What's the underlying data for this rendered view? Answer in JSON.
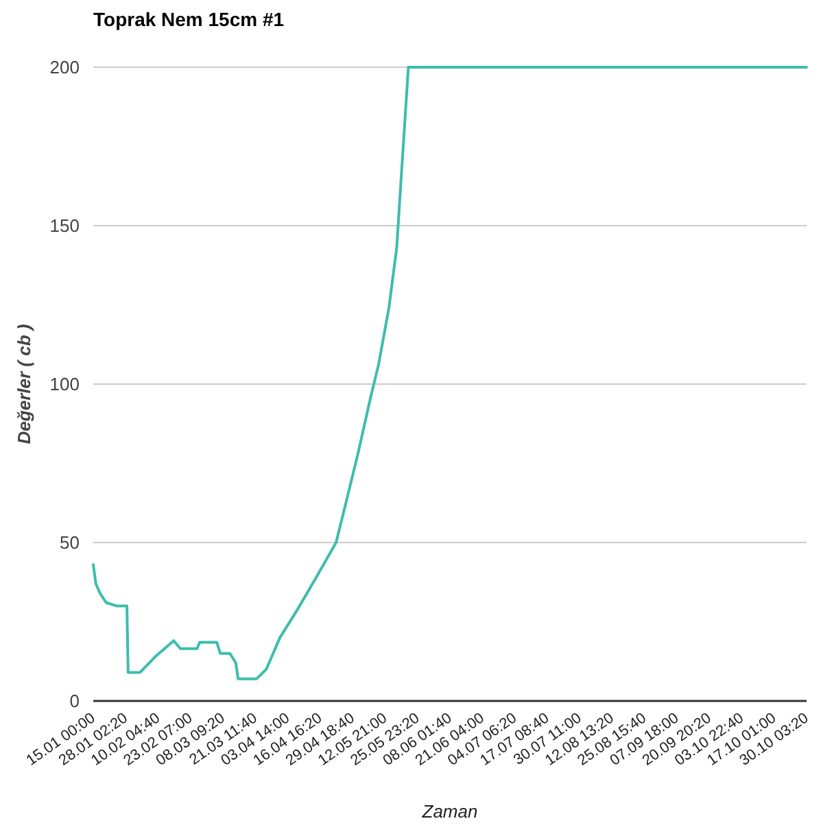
{
  "chart_data": {
    "type": "line",
    "title": "Toprak Nem 15cm #1",
    "xlabel": "Zaman",
    "ylabel": "Değerler ( cb )",
    "x": [
      "--01-15T00:00",
      "--01-16T01:00",
      "--01-17T17:00",
      "--01-20T06:00",
      "--01-24T10:00",
      "--01-28T14:00",
      "--01-29T02:00",
      "--02-02T22:00",
      "--02-09T02:00",
      "--02-16T12:00",
      "--02-19T05:00",
      "--02-25T22:00",
      "--02-27T00:00",
      "--03-05T22:00",
      "--03-07T07:00",
      "--03-11T05:00",
      "--03-13T14:00",
      "--03-14T12:00",
      "--03-22T00:00",
      "--03-25T22:00",
      "--03-31T10:00",
      "--04-07T07:00",
      "--04-15T02:00",
      "--04-23T02:00",
      "--04-26T14:00",
      "--05-01T22:00",
      "--05-07T02:00",
      "--05-10T05:00",
      "--05-14T10:00",
      "--05-17T14:00",
      "--05-19T17:00",
      "--05-21T05:00",
      "--05-22T07:00",
      "--10-30T03:20"
    ],
    "series": [
      {
        "color": "#3dbdac",
        "values": [
          43,
          37,
          34,
          31,
          30,
          30,
          9,
          9,
          14,
          19,
          16.5,
          16.5,
          18.5,
          18.5,
          15,
          15,
          12,
          7,
          7,
          10,
          20,
          28.6,
          39,
          50,
          61,
          78,
          96,
          106,
          124,
          143,
          169,
          187,
          200,
          200
        ]
      }
    ],
    "xlim": [
      "--01-15T00:00",
      "--10-30T03:20"
    ],
    "xticks": [
      {
        "value": "--01-15T00:00",
        "label": "15.01 00:00"
      },
      {
        "value": "--01-28T02:20",
        "label": "28.01 02:20"
      },
      {
        "value": "--02-10T04:40",
        "label": "10.02 04:40"
      },
      {
        "value": "--02-23T07:00",
        "label": "23.02 07:00"
      },
      {
        "value": "--03-08T09:20",
        "label": "08.03 09:20"
      },
      {
        "value": "--03-21T11:40",
        "label": "21.03 11:40"
      },
      {
        "value": "--04-03T14:00",
        "label": "03.04 14:00"
      },
      {
        "value": "--04-16T16:20",
        "label": "16.04 16:20"
      },
      {
        "value": "--04-29T18:40",
        "label": "29.04 18:40"
      },
      {
        "value": "--05-12T21:00",
        "label": "12.05 21:00"
      },
      {
        "value": "--05-25T23:20",
        "label": "25.05 23:20"
      },
      {
        "value": "--06-08T01:40",
        "label": "08.06 01:40"
      },
      {
        "value": "--06-21T04:00",
        "label": "21.06 04:00"
      },
      {
        "value": "--07-04T06:20",
        "label": "04.07 06:20"
      },
      {
        "value": "--07-17T08:40",
        "label": "17.07 08:40"
      },
      {
        "value": "--07-30T11:00",
        "label": "30.07 11:00"
      },
      {
        "value": "--08-12T13:20",
        "label": "12.08 13:20"
      },
      {
        "value": "--08-25T15:40",
        "label": "25.08 15:40"
      },
      {
        "value": "--09-07T18:00",
        "label": "07.09 18:00"
      },
      {
        "value": "--09-20T20:20",
        "label": "20.09 20:20"
      },
      {
        "value": "--10-03T22:40",
        "label": "03.10 22:40"
      },
      {
        "value": "--10-17T01:00",
        "label": "17.10 01:00"
      },
      {
        "value": "--10-30T03:20",
        "label": "30.10 03:20"
      }
    ],
    "ylim": [
      0,
      200
    ],
    "yticks": [
      0,
      50,
      100,
      150,
      200
    ],
    "grid": "y",
    "marker": "none",
    "line_style": "solid"
  }
}
